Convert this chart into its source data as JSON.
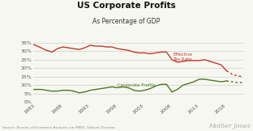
{
  "title": "US Corporate Profits",
  "subtitle": "As Percentage of GDP",
  "source": "Source: Bureau of Economic Analysis via FRED, Gabriel Zucman",
  "watermark": "Mother Jones",
  "background_color": "#f7f7f2",
  "title_color": "#111111",
  "subtitle_color": "#333333",
  "yticks": [
    0,
    5,
    10,
    15,
    20,
    25,
    30,
    35
  ],
  "ytick_labels": [
    "0%",
    "5%",
    "10%",
    "15%",
    "20%",
    "25%",
    "30%",
    "35%"
  ],
  "xticks": [
    1983,
    1988,
    1993,
    1998,
    2003,
    2008,
    2013,
    2018
  ],
  "xmin": 1982.5,
  "xmax": 2021,
  "ymin": 0,
  "ymax": 37,
  "effective_tax_color": "#c0392b",
  "corporate_profits_color": "#4a7a1e",
  "effective_tax_label": "Effective\nTax Rate",
  "corporate_profits_label": "Corporate Profits",
  "effective_tax_years": [
    1982,
    1983,
    1984,
    1985,
    1986,
    1987,
    1988,
    1989,
    1990,
    1991,
    1992,
    1993,
    1994,
    1995,
    1996,
    1997,
    1998,
    1999,
    2000,
    2001,
    2002,
    2003,
    2004,
    2005,
    2006,
    2007,
    2008,
    2009,
    2010,
    2011,
    2012,
    2013,
    2014,
    2015,
    2016,
    2017,
    2018
  ],
  "effective_tax_values": [
    34.5,
    33.5,
    32.0,
    30.5,
    29.5,
    31.5,
    32.5,
    32.0,
    31.5,
    31.0,
    32.0,
    33.5,
    33.0,
    33.0,
    32.5,
    32.5,
    31.5,
    31.0,
    30.5,
    29.5,
    29.0,
    29.0,
    28.5,
    29.0,
    29.5,
    29.5,
    25.0,
    23.5,
    24.0,
    24.5,
    24.5,
    24.5,
    25.0,
    24.0,
    23.0,
    22.0,
    18.5
  ],
  "effective_tax_dotted_years": [
    2018,
    2019,
    2020,
    2021
  ],
  "effective_tax_dotted_values": [
    18.5,
    16.5,
    15.5,
    15.0
  ],
  "corporate_profits_years": [
    1982,
    1983,
    1984,
    1985,
    1986,
    1987,
    1988,
    1989,
    1990,
    1991,
    1992,
    1993,
    1994,
    1995,
    1996,
    1997,
    1998,
    1999,
    2000,
    2001,
    2002,
    2003,
    2004,
    2005,
    2006,
    2007,
    2008,
    2009,
    2010,
    2011,
    2012,
    2013,
    2014,
    2015,
    2016,
    2017,
    2018
  ],
  "corporate_profits_values": [
    7.5,
    7.5,
    7.5,
    7.0,
    6.5,
    6.5,
    7.0,
    7.0,
    6.5,
    5.5,
    6.0,
    7.0,
    7.5,
    8.0,
    8.5,
    9.0,
    8.5,
    9.0,
    8.5,
    7.0,
    6.5,
    7.0,
    8.0,
    9.5,
    10.5,
    10.5,
    6.0,
    7.5,
    10.0,
    11.0,
    12.0,
    13.5,
    13.5,
    13.0,
    12.5,
    12.0,
    12.5
  ],
  "corporate_profits_dotted_years": [
    2018,
    2019,
    2020,
    2021
  ],
  "corporate_profits_dotted_values": [
    12.5,
    12.0,
    11.5,
    11.5
  ]
}
